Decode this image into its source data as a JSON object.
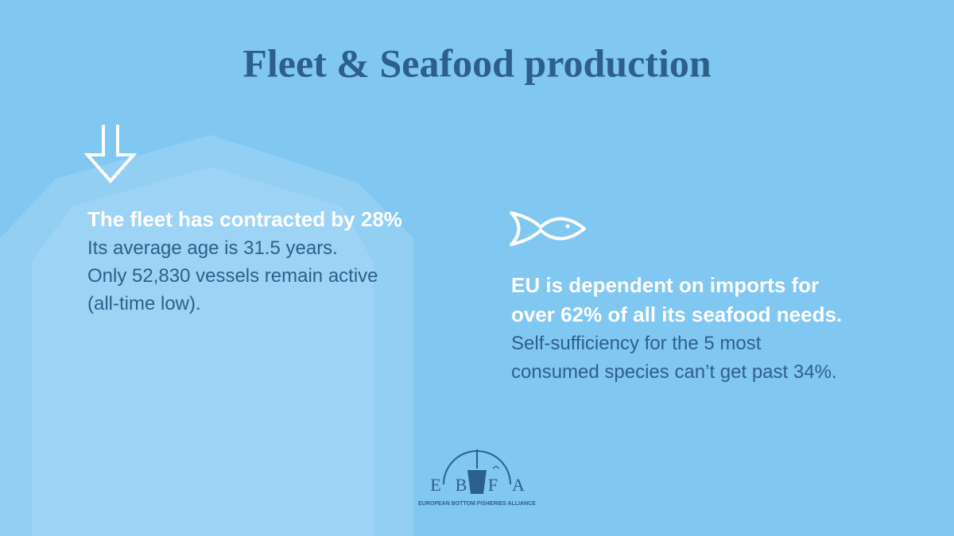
{
  "title": "Fleet & Seafood production",
  "left": {
    "headline": "The fleet has contracted by 28%",
    "lines": [
      "Its average age is 31.5 years.",
      "Only 52,830 vessels remain active",
      "(all-time low)."
    ]
  },
  "right": {
    "headline": [
      "EU is dependent on imports for",
      "over 62% of all its seafood needs."
    ],
    "lines": [
      "Self-sufficiency for the 5 most",
      "consumed species can’t get past 34%."
    ]
  },
  "logo": {
    "letters": [
      "E",
      "B",
      "F",
      "A"
    ],
    "tagline": "EUROPEAN BOTTOM FISHERIES ALLIANCE"
  }
}
